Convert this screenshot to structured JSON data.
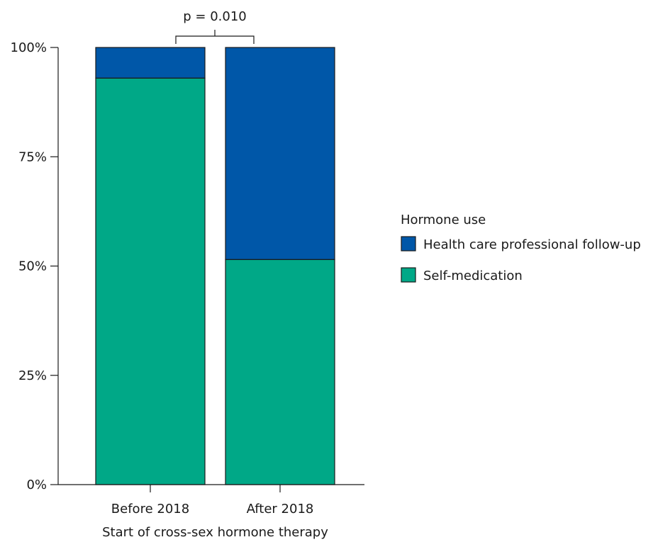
{
  "chart_data": {
    "type": "bar",
    "stacked": true,
    "normalized": true,
    "categories": [
      "Before 2018",
      "After 2018"
    ],
    "series": [
      {
        "name": "Self-medication",
        "values": [
          93,
          51.5
        ],
        "color": "#00a887"
      },
      {
        "name": "Health care professional follow-up",
        "values": [
          7,
          48.5
        ],
        "color": "#0057a8"
      }
    ],
    "xlabel": "Start of cross-sex hormone therapy",
    "ylabel": "",
    "ylim": [
      0,
      100
    ],
    "yticks": [
      0,
      25,
      50,
      75,
      100
    ],
    "ytick_labels": [
      "0%",
      "25%",
      "50%",
      "75%",
      "100%"
    ],
    "legend": {
      "title": "Hormone use",
      "placement": "right",
      "entries": [
        "Health care professional follow-up",
        "Self-medication"
      ]
    },
    "annotation": {
      "text": "p = 0.010",
      "between": [
        "Before 2018",
        "After 2018"
      ]
    },
    "grid": false
  }
}
